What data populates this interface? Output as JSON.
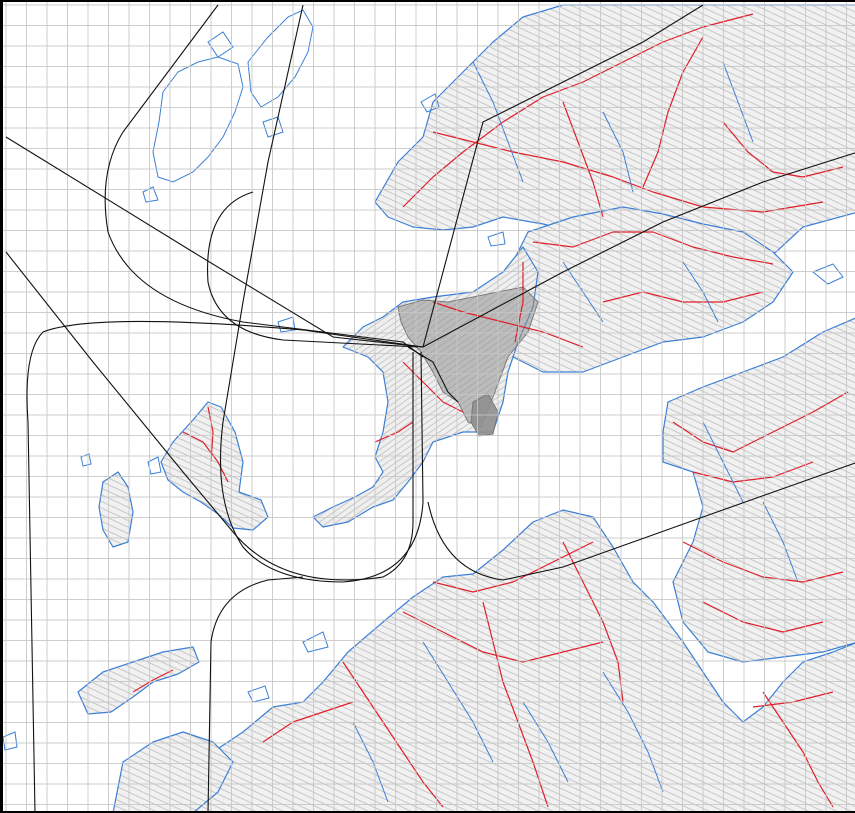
{
  "map": {
    "kind": "topographic-map-with-grid",
    "has_text_labels": false,
    "grid": true,
    "layers": [
      {
        "name": "contours",
        "color": "#b4b4b4"
      },
      {
        "name": "coastline-and-water",
        "color": "#3c7fd6"
      },
      {
        "name": "roads",
        "color": "#e0202a"
      },
      {
        "name": "flight-paths",
        "color": "#111111"
      },
      {
        "name": "grid",
        "color": "#c6c6c6"
      },
      {
        "name": "urban-area",
        "color": "#8f8f8f"
      }
    ]
  }
}
